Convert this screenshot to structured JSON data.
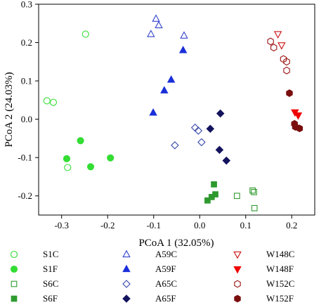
{
  "chart_data": {
    "type": "scatter",
    "title": "",
    "xlabel": "PCoA 1 (32.05%)",
    "ylabel": "PCoA 2 (24.03%)",
    "xlim": [
      -0.35,
      0.25
    ],
    "ylim": [
      -0.25,
      0.3
    ],
    "xticks": [
      -0.3,
      -0.2,
      -0.1,
      0.0,
      0.1,
      0.2
    ],
    "xtick_labels": [
      "-0.3",
      "-0.2",
      "-0.1",
      "0.0",
      "0.1",
      "0.2"
    ],
    "yticks": [
      -0.2,
      -0.1,
      0.0,
      0.1,
      0.2,
      0.3
    ],
    "ytick_labels": [
      "-0.2",
      "-0.1",
      "0.0",
      "0.1",
      "0.2",
      "0.3"
    ],
    "grid": false,
    "legend_position": "bottom",
    "series": [
      {
        "name": "S1C",
        "marker": "circle",
        "filled": false,
        "color": "#33dd33",
        "points": [
          [
            -0.248,
            0.222
          ],
          [
            -0.332,
            0.048
          ],
          [
            -0.318,
            0.044
          ],
          [
            -0.287,
            -0.126
          ]
        ]
      },
      {
        "name": "S1F",
        "marker": "circle",
        "filled": true,
        "color": "#33dd33",
        "points": [
          [
            -0.259,
            -0.056
          ],
          [
            -0.289,
            -0.103
          ],
          [
            -0.237,
            -0.124
          ],
          [
            -0.194,
            -0.101
          ]
        ]
      },
      {
        "name": "S6C",
        "marker": "square",
        "filled": false,
        "color": "#2e9a2e",
        "points": [
          [
            0.081,
            -0.2
          ],
          [
            0.115,
            -0.186
          ],
          [
            0.118,
            -0.19
          ],
          [
            0.119,
            -0.232
          ]
        ]
      },
      {
        "name": "S6F",
        "marker": "square",
        "filled": true,
        "color": "#2e9a2e",
        "points": [
          [
            0.017,
            -0.212
          ],
          [
            0.026,
            -0.203
          ],
          [
            0.034,
            -0.196
          ],
          [
            0.031,
            -0.17
          ]
        ]
      },
      {
        "name": "A59C",
        "marker": "triangle-up",
        "filled": false,
        "color": "#3344cc",
        "points": [
          [
            -0.095,
            0.262
          ],
          [
            -0.089,
            0.245
          ],
          [
            -0.106,
            0.222
          ],
          [
            -0.034,
            0.218
          ]
        ]
      },
      {
        "name": "A59F",
        "marker": "triangle-up",
        "filled": true,
        "color": "#1a2fd9",
        "points": [
          [
            -0.036,
            0.18
          ],
          [
            -0.062,
            0.103
          ],
          [
            -0.077,
            0.075
          ],
          [
            -0.101,
            0.017
          ]
        ]
      },
      {
        "name": "A65C",
        "marker": "diamond",
        "filled": false,
        "color": "#3344aa",
        "points": [
          [
            -0.01,
            -0.022
          ],
          [
            -0.003,
            -0.03
          ],
          [
            0.004,
            -0.06
          ],
          [
            -0.054,
            -0.068
          ]
        ]
      },
      {
        "name": "A65F",
        "marker": "diamond",
        "filled": true,
        "color": "#13135e",
        "points": [
          [
            0.045,
            0.015
          ],
          [
            0.023,
            -0.025
          ],
          [
            0.043,
            -0.08
          ],
          [
            0.058,
            -0.108
          ]
        ]
      },
      {
        "name": "W148C",
        "marker": "triangle-down",
        "filled": false,
        "color": "#cc1111",
        "points": [
          [
            0.17,
            0.222
          ],
          [
            0.178,
            0.193
          ]
        ]
      },
      {
        "name": "W148F",
        "marker": "triangle-down",
        "filled": true,
        "color": "#ee0000",
        "points": [
          [
            0.207,
            0.018
          ],
          [
            0.214,
            0.01
          ]
        ]
      },
      {
        "name": "W152C",
        "marker": "hexagon",
        "filled": false,
        "color": "#991111",
        "points": [
          [
            0.154,
            0.203
          ],
          [
            0.161,
            0.187
          ],
          [
            0.182,
            0.157
          ],
          [
            0.189,
            0.15
          ],
          [
            0.189,
            0.127
          ]
        ]
      },
      {
        "name": "W152F",
        "marker": "hexagon",
        "filled": true,
        "color": "#7a0d0d",
        "points": [
          [
            0.195,
            0.068
          ],
          [
            0.206,
            -0.012
          ],
          [
            0.208,
            -0.02
          ],
          [
            0.217,
            -0.024
          ]
        ]
      }
    ]
  }
}
